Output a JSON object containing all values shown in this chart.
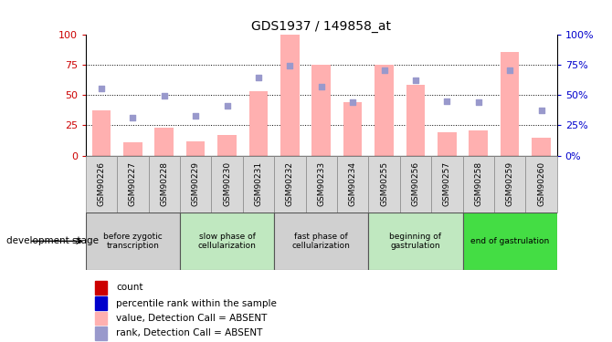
{
  "title": "GDS1937 / 149858_at",
  "samples": [
    "GSM90226",
    "GSM90227",
    "GSM90228",
    "GSM90229",
    "GSM90230",
    "GSM90231",
    "GSM90232",
    "GSM90233",
    "GSM90234",
    "GSM90255",
    "GSM90256",
    "GSM90257",
    "GSM90258",
    "GSM90259",
    "GSM90260"
  ],
  "bar_values": [
    37,
    11,
    23,
    12,
    17,
    53,
    100,
    75,
    44,
    75,
    58,
    19,
    21,
    85,
    15
  ],
  "dot_values": [
    55,
    31,
    49,
    33,
    41,
    64,
    74,
    57,
    44,
    70,
    62,
    45,
    44,
    70,
    37
  ],
  "stages": [
    {
      "label": "before zygotic\ntranscription",
      "start": 0,
      "end": 3,
      "color": "#d0d0d0"
    },
    {
      "label": "slow phase of\ncellularization",
      "start": 3,
      "end": 6,
      "color": "#c0e8c0"
    },
    {
      "label": "fast phase of\ncellularization",
      "start": 6,
      "end": 9,
      "color": "#d0d0d0"
    },
    {
      "label": "beginning of\ngastrulation",
      "start": 9,
      "end": 12,
      "color": "#c0e8c0"
    },
    {
      "label": "end of gastrulation",
      "start": 12,
      "end": 15,
      "color": "#44dd44"
    }
  ],
  "bar_color": "#ffb0b0",
  "dot_color": "#9999cc",
  "left_axis_color": "#cc0000",
  "right_axis_color": "#0000cc",
  "ylim": [
    0,
    100
  ],
  "grid_values": [
    25,
    50,
    75
  ],
  "legend": [
    {
      "color": "#cc0000",
      "label": "count"
    },
    {
      "color": "#0000cc",
      "label": "percentile rank within the sample"
    },
    {
      "color": "#ffb0b0",
      "label": "value, Detection Call = ABSENT"
    },
    {
      "color": "#9999cc",
      "label": "rank, Detection Call = ABSENT"
    }
  ],
  "xlabel_left": "development stage",
  "tick_bg_color": "#d8d8d8",
  "stage_border_color": "#888888"
}
